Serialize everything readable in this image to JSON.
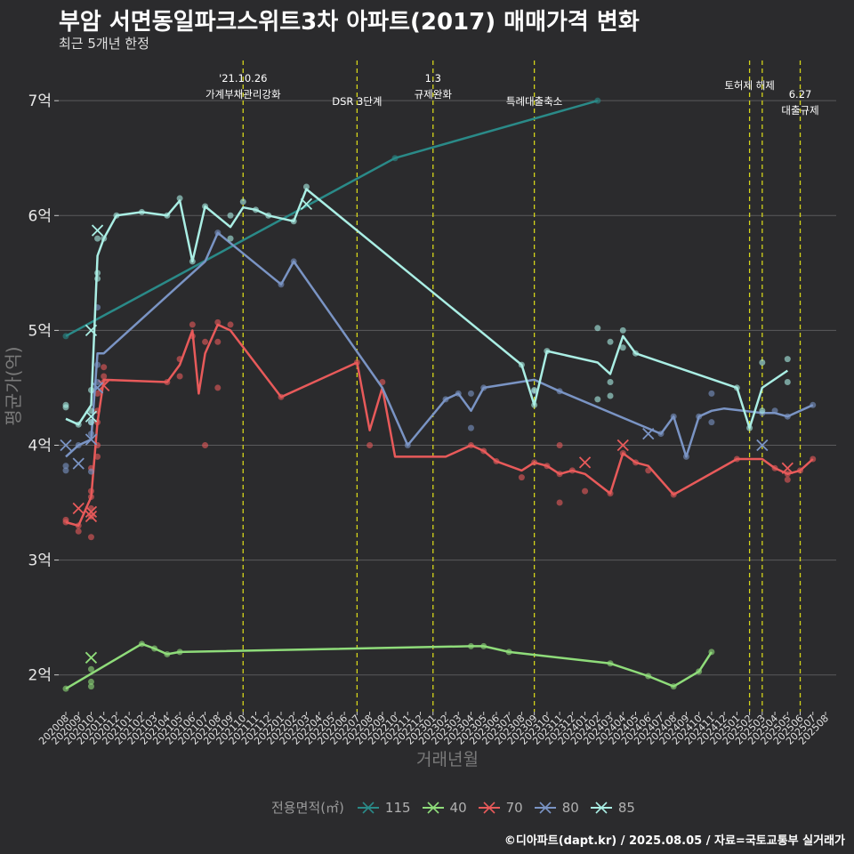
{
  "header": {
    "title": "부암 서면동일파크스위트3차 아파트(2017) 매매가격 변화",
    "subtitle": "최근 5개년 한정"
  },
  "caption": "©디아파트(dapt.kr) / 2025.08.05 / 자료=국토교통부 실거래가",
  "legend_title": "전용면적(㎡)",
  "chart_data": {
    "type": "line",
    "xlabel": "거래년월",
    "ylabel": "평균가(억)",
    "ylim": [
      1.68,
      7.35
    ],
    "yticks": [
      2,
      3,
      4,
      5,
      6,
      7
    ],
    "ytick_labels": [
      "2억",
      "3억",
      "4억",
      "5억",
      "6억",
      "7억"
    ],
    "x_months": [
      "202008",
      "202009",
      "202010",
      "202011",
      "202012",
      "202101",
      "202102",
      "202103",
      "202104",
      "202105",
      "202106",
      "202107",
      "202108",
      "202109",
      "202110",
      "202111",
      "202112",
      "202201",
      "202202",
      "202203",
      "202204",
      "202205",
      "202206",
      "202207",
      "202208",
      "202209",
      "202210",
      "202211",
      "202212",
      "202301",
      "202302",
      "202303",
      "202304",
      "202305",
      "202306",
      "202307",
      "202308",
      "202309",
      "202310",
      "202311",
      "202312",
      "202401",
      "202402",
      "202403",
      "202404",
      "202405",
      "202406",
      "202407",
      "202408",
      "202409",
      "202410",
      "202411",
      "202412",
      "202501",
      "202502",
      "202503",
      "202504",
      "202505",
      "202506",
      "202507",
      "202508"
    ],
    "grid": true,
    "legend_position": "bottom",
    "events": [
      {
        "x": 14.0,
        "label": "'21.10.26\n가계부채관리강화"
      },
      {
        "x": 23.0,
        "label": "DSR 3단계"
      },
      {
        "x": 29.0,
        "label": "1.3\n규제완화"
      },
      {
        "x": 37.0,
        "label": "특례대출축소"
      },
      {
        "x": 54.0,
        "label": "토허제 해제"
      },
      {
        "x": 55.0,
        "label": ""
      },
      {
        "x": 58.0,
        "label": "6.27\n대출규제"
      }
    ],
    "series": [
      {
        "name": "115",
        "color": "#2a8a88",
        "points": [
          [
            0,
            4.95
          ],
          [
            26,
            6.5
          ],
          [
            42,
            7.0
          ]
        ],
        "scatter": [
          [
            0,
            4.95
          ],
          [
            26,
            6.5
          ],
          [
            42,
            7.0
          ]
        ],
        "crosses": []
      },
      {
        "name": "40",
        "color": "#8fdc7a",
        "points": [
          [
            0,
            1.88
          ],
          [
            6,
            2.27
          ],
          [
            7,
            2.23
          ],
          [
            8,
            2.18
          ],
          [
            9,
            2.2
          ],
          [
            32,
            2.25
          ],
          [
            33,
            2.25
          ],
          [
            35,
            2.2
          ],
          [
            43,
            2.1
          ],
          [
            46,
            1.99
          ],
          [
            48,
            1.9
          ],
          [
            50,
            2.03
          ],
          [
            51,
            2.2
          ]
        ],
        "scatter": [
          [
            0,
            1.88
          ],
          [
            2,
            1.9
          ],
          [
            2,
            1.94
          ],
          [
            2,
            2.05
          ],
          [
            6,
            2.27
          ],
          [
            7,
            2.23
          ],
          [
            8,
            2.18
          ],
          [
            9,
            2.2
          ],
          [
            32,
            2.25
          ],
          [
            33,
            2.25
          ],
          [
            35,
            2.2
          ],
          [
            43,
            2.1
          ],
          [
            46,
            1.99
          ],
          [
            48,
            1.9
          ],
          [
            50,
            2.03
          ],
          [
            51,
            2.2
          ]
        ],
        "crosses": [
          [
            2,
            2.15
          ]
        ]
      },
      {
        "name": "70",
        "color": "#e85a5a",
        "points": [
          [
            0,
            3.33
          ],
          [
            1,
            3.3
          ],
          [
            2,
            3.55
          ],
          [
            2.5,
            4.2
          ],
          [
            3,
            4.57
          ],
          [
            8,
            4.55
          ],
          [
            9,
            4.7
          ],
          [
            10,
            5.0
          ],
          [
            10.5,
            4.45
          ],
          [
            11,
            4.8
          ],
          [
            12,
            5.05
          ],
          [
            13,
            5.0
          ],
          [
            17,
            4.42
          ],
          [
            23,
            4.72
          ],
          [
            24,
            4.13
          ],
          [
            25,
            4.5
          ],
          [
            26,
            3.9
          ],
          [
            30,
            3.9
          ],
          [
            32,
            4.0
          ],
          [
            33,
            3.95
          ],
          [
            34,
            3.86
          ],
          [
            36,
            3.78
          ],
          [
            37,
            3.85
          ],
          [
            38,
            3.82
          ],
          [
            39,
            3.75
          ],
          [
            40,
            3.78
          ],
          [
            41,
            3.75
          ],
          [
            43,
            3.58
          ],
          [
            44,
            3.93
          ],
          [
            45,
            3.85
          ],
          [
            46,
            3.82
          ],
          [
            48,
            3.57
          ],
          [
            53,
            3.88
          ],
          [
            55,
            3.88
          ],
          [
            56,
            3.8
          ],
          [
            57,
            3.75
          ],
          [
            58,
            3.78
          ],
          [
            59,
            3.88
          ]
        ],
        "scatter": [
          [
            0,
            3.33
          ],
          [
            0,
            3.35
          ],
          [
            1,
            3.25
          ],
          [
            1,
            3.3
          ],
          [
            2,
            3.2
          ],
          [
            2,
            3.38
          ],
          [
            2,
            3.45
          ],
          [
            2,
            3.55
          ],
          [
            2,
            3.6
          ],
          [
            2,
            3.8
          ],
          [
            2.5,
            3.9
          ],
          [
            2.5,
            4.0
          ],
          [
            2.5,
            4.2
          ],
          [
            2.5,
            4.3
          ],
          [
            2.5,
            4.45
          ],
          [
            3,
            4.55
          ],
          [
            3,
            4.6
          ],
          [
            3,
            4.68
          ],
          [
            8,
            4.55
          ],
          [
            9,
            4.6
          ],
          [
            9,
            4.75
          ],
          [
            10,
            4.95
          ],
          [
            10,
            5.05
          ],
          [
            11,
            4.0
          ],
          [
            11,
            4.9
          ],
          [
            12,
            4.5
          ],
          [
            12,
            4.9
          ],
          [
            12,
            5.07
          ],
          [
            13,
            5.05
          ],
          [
            17,
            4.42
          ],
          [
            23,
            4.72
          ],
          [
            24,
            4.0
          ],
          [
            25,
            4.55
          ],
          [
            32,
            4.0
          ],
          [
            33,
            3.95
          ],
          [
            34,
            3.86
          ],
          [
            36,
            3.72
          ],
          [
            37,
            3.85
          ],
          [
            38,
            3.82
          ],
          [
            39,
            3.75
          ],
          [
            39,
            3.5
          ],
          [
            39,
            4.0
          ],
          [
            40,
            3.78
          ],
          [
            41,
            3.6
          ],
          [
            43,
            3.58
          ],
          [
            44,
            3.93
          ],
          [
            45,
            3.85
          ],
          [
            46,
            3.78
          ],
          [
            48,
            3.57
          ],
          [
            53,
            3.88
          ],
          [
            56,
            3.8
          ],
          [
            57,
            3.75
          ],
          [
            57,
            3.7
          ],
          [
            58,
            3.78
          ],
          [
            59,
            3.88
          ]
        ],
        "crosses": [
          [
            1,
            3.45
          ],
          [
            2,
            3.38
          ],
          [
            2,
            3.42
          ],
          [
            3,
            4.52
          ],
          [
            41,
            3.85
          ],
          [
            44,
            4.0
          ],
          [
            57,
            3.8
          ]
        ]
      },
      {
        "name": "80",
        "color": "#7a94c4",
        "points": [
          [
            0,
            3.9
          ],
          [
            1,
            4.0
          ],
          [
            2,
            4.05
          ],
          [
            2.5,
            4.8
          ],
          [
            3,
            4.8
          ],
          [
            11,
            5.6
          ],
          [
            12,
            5.85
          ],
          [
            17,
            5.4
          ],
          [
            18,
            5.6
          ],
          [
            25,
            4.5
          ],
          [
            27,
            4.0
          ],
          [
            30,
            4.4
          ],
          [
            31,
            4.45
          ],
          [
            32,
            4.3
          ],
          [
            33,
            4.5
          ],
          [
            37,
            4.57
          ],
          [
            39,
            4.47
          ],
          [
            47,
            4.1
          ],
          [
            48,
            4.25
          ],
          [
            49,
            3.9
          ],
          [
            50,
            4.25
          ],
          [
            51,
            4.3
          ],
          [
            52,
            4.32
          ],
          [
            55,
            4.28
          ],
          [
            56,
            4.28
          ],
          [
            57,
            4.25
          ],
          [
            59,
            4.35
          ]
        ],
        "scatter": [
          [
            0,
            3.78
          ],
          [
            0,
            3.82
          ],
          [
            1,
            4.0
          ],
          [
            2,
            3.77
          ],
          [
            2,
            4.1
          ],
          [
            2,
            4.2
          ],
          [
            2.5,
            4.55
          ],
          [
            2.5,
            4.7
          ],
          [
            2.5,
            5.2
          ],
          [
            12,
            5.85
          ],
          [
            17,
            5.4
          ],
          [
            18,
            5.6
          ],
          [
            27,
            4.0
          ],
          [
            30,
            4.4
          ],
          [
            31,
            4.45
          ],
          [
            32,
            4.15
          ],
          [
            32,
            4.45
          ],
          [
            33,
            4.5
          ],
          [
            37,
            4.47
          ],
          [
            39,
            4.47
          ],
          [
            47,
            4.1
          ],
          [
            48,
            4.25
          ],
          [
            49,
            3.9
          ],
          [
            50,
            4.25
          ],
          [
            51,
            4.45
          ],
          [
            51,
            4.2
          ],
          [
            55,
            4.28
          ],
          [
            56,
            4.3
          ],
          [
            57,
            4.25
          ],
          [
            59,
            4.35
          ]
        ],
        "crosses": [
          [
            0,
            4.0
          ],
          [
            1,
            3.84
          ],
          [
            2,
            4.05
          ],
          [
            2.5,
            4.5
          ],
          [
            46,
            4.1
          ],
          [
            55,
            4.0
          ]
        ]
      },
      {
        "name": "85",
        "color": "#aaeee4",
        "points": [
          [
            0,
            4.23
          ],
          [
            1,
            4.18
          ],
          [
            2,
            4.35
          ],
          [
            2.5,
            5.65
          ],
          [
            3,
            5.8
          ],
          [
            4,
            6.0
          ],
          [
            6,
            6.03
          ],
          [
            8,
            6.0
          ],
          [
            9,
            6.13
          ],
          [
            10,
            5.6
          ],
          [
            11,
            6.08
          ],
          [
            13,
            5.9
          ],
          [
            14,
            6.07
          ],
          [
            15,
            6.05
          ],
          [
            16,
            6.0
          ],
          [
            18,
            5.95
          ],
          [
            19,
            6.23
          ],
          [
            36,
            4.7
          ],
          [
            37,
            4.35
          ],
          [
            38,
            4.82
          ],
          [
            42,
            4.72
          ],
          [
            43,
            4.62
          ],
          [
            44,
            4.95
          ],
          [
            45,
            4.8
          ],
          [
            53,
            4.5
          ],
          [
            54,
            4.15
          ],
          [
            55,
            4.5
          ],
          [
            57,
            4.65
          ]
        ],
        "scatter": [
          [
            0,
            4.33
          ],
          [
            0,
            4.35
          ],
          [
            1,
            4.18
          ],
          [
            2,
            4.48
          ],
          [
            2,
            4.3
          ],
          [
            2,
            4.2
          ],
          [
            2.5,
            5.45
          ],
          [
            2.5,
            5.5
          ],
          [
            2.5,
            5.8
          ],
          [
            3,
            5.8
          ],
          [
            4,
            6.0
          ],
          [
            6,
            6.03
          ],
          [
            8,
            6.0
          ],
          [
            9,
            6.15
          ],
          [
            10,
            5.6
          ],
          [
            11,
            6.08
          ],
          [
            13,
            6.0
          ],
          [
            13,
            5.8
          ],
          [
            14,
            6.12
          ],
          [
            15,
            6.05
          ],
          [
            16,
            6.0
          ],
          [
            18,
            5.95
          ],
          [
            19,
            6.25
          ],
          [
            36,
            4.7
          ],
          [
            37,
            4.35
          ],
          [
            37,
            4.48
          ],
          [
            38,
            4.82
          ],
          [
            42,
            5.02
          ],
          [
            42,
            4.4
          ],
          [
            43,
            4.9
          ],
          [
            43,
            4.55
          ],
          [
            43,
            4.43
          ],
          [
            44,
            5.0
          ],
          [
            44,
            4.85
          ],
          [
            45,
            4.8
          ],
          [
            53,
            4.5
          ],
          [
            54,
            4.15
          ],
          [
            55,
            4.3
          ],
          [
            55,
            4.72
          ],
          [
            57,
            4.75
          ],
          [
            57,
            4.55
          ]
        ],
        "crosses": [
          [
            2,
            4.25
          ],
          [
            2,
            5.0
          ],
          [
            2.5,
            5.87
          ],
          [
            19,
            6.1
          ]
        ]
      }
    ]
  }
}
